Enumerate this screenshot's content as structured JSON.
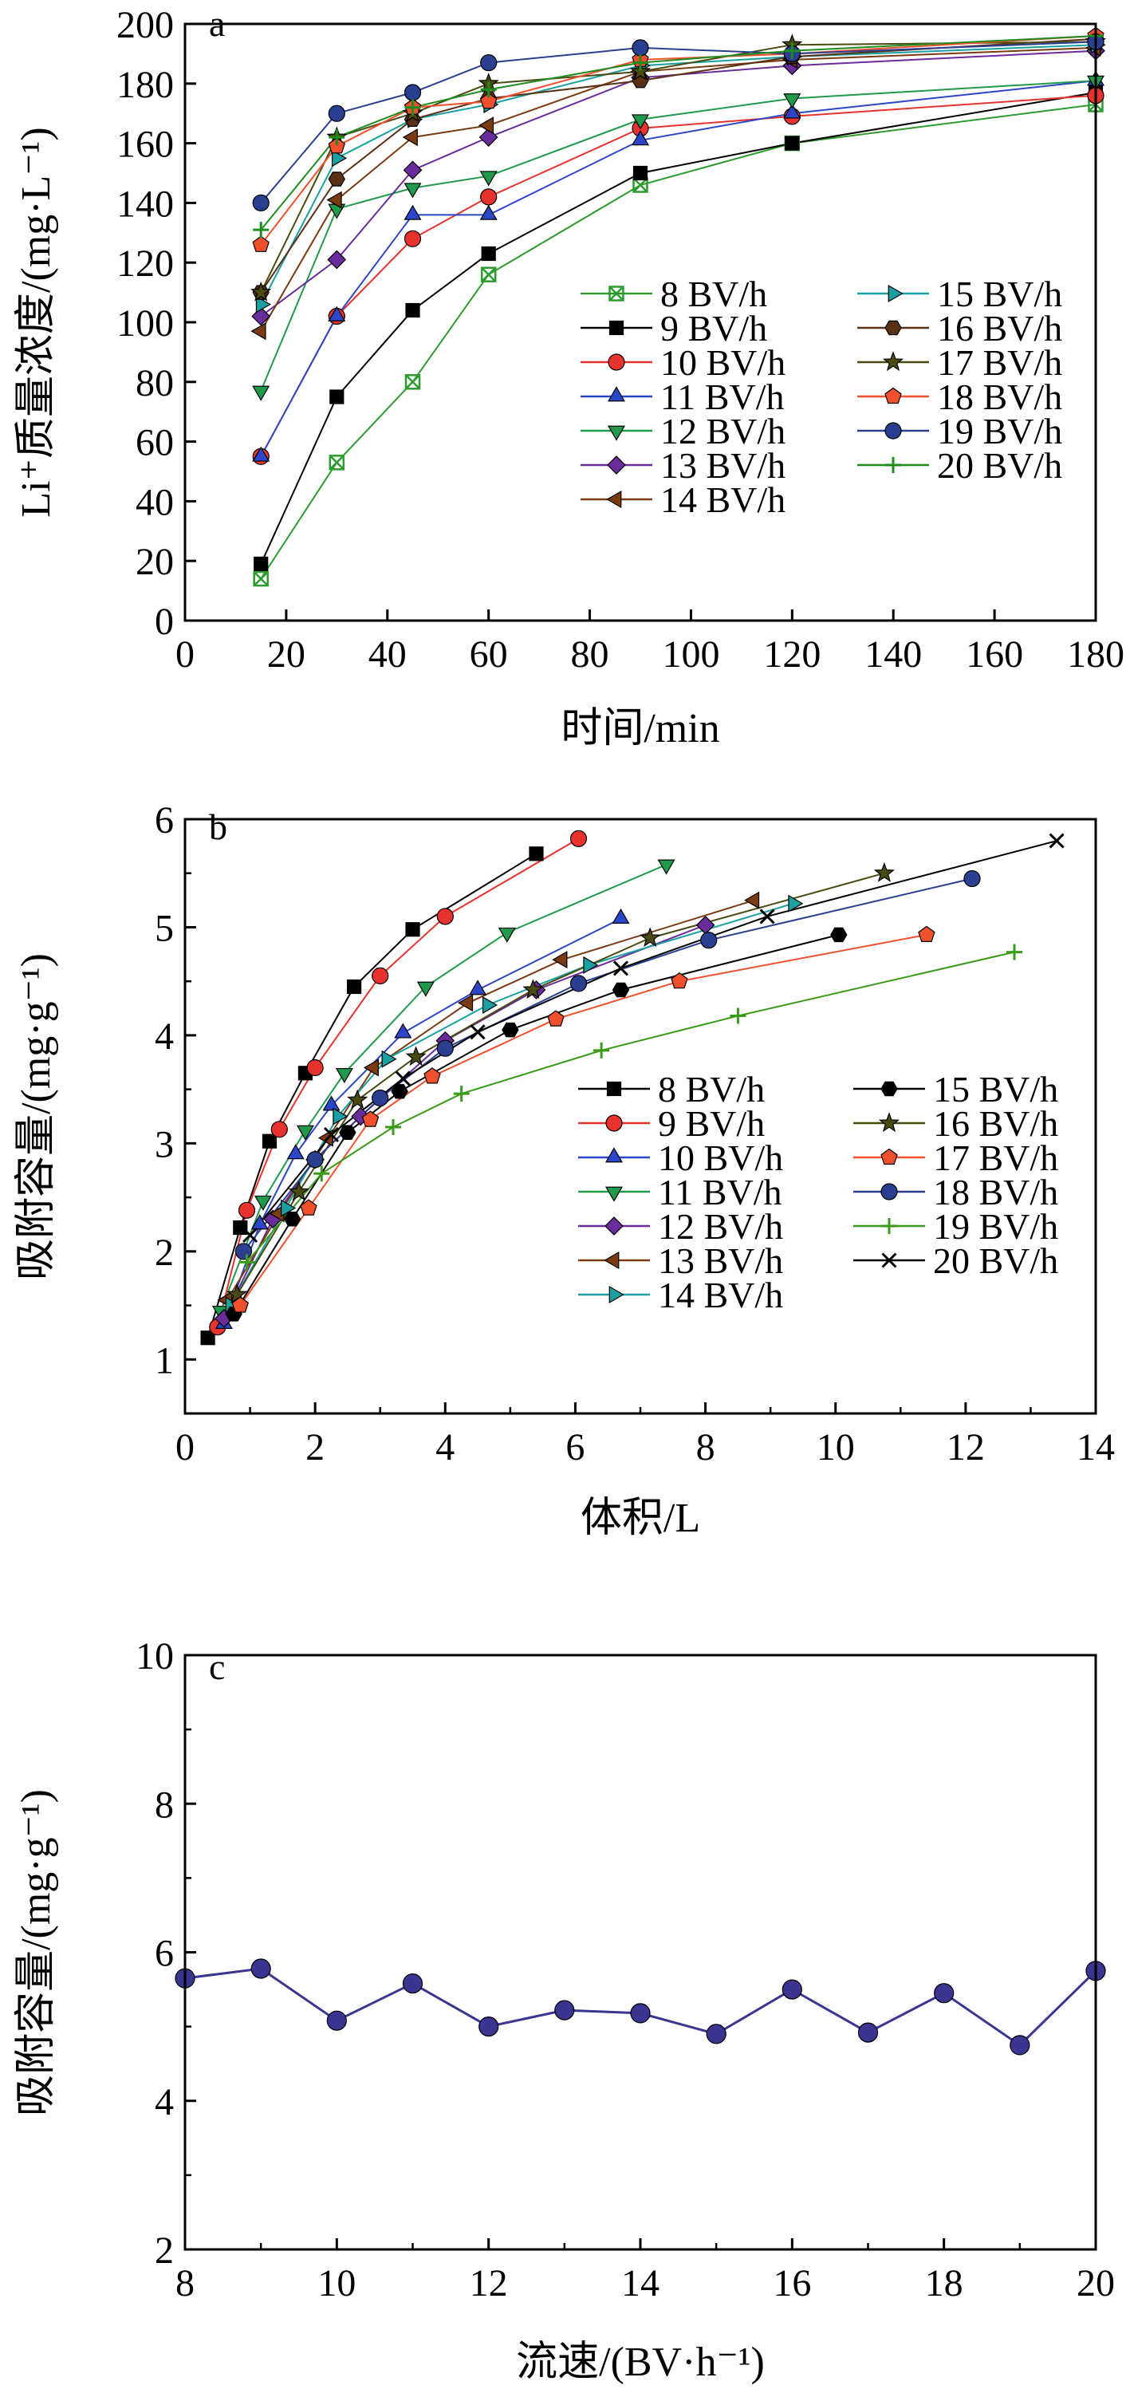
{
  "chart_data": [
    {
      "type": "line",
      "panel_label": "a",
      "xlabel": "时间/min",
      "ylabel": "Li⁺质量浓度/(mg·L⁻¹)",
      "xlim": [
        0,
        180
      ],
      "ylim": [
        0,
        200
      ],
      "xticks": [
        0,
        20,
        40,
        60,
        80,
        100,
        120,
        140,
        160,
        180
      ],
      "yticks": [
        0,
        20,
        40,
        60,
        80,
        100,
        120,
        140,
        160,
        180,
        200
      ],
      "grid": false,
      "legend": "right, two columns",
      "x": [
        15,
        30,
        45,
        60,
        90,
        120,
        180
      ],
      "series": [
        {
          "name": "8 BV/h",
          "color": "#2e9b2e",
          "marker": "xsquare",
          "values": [
            14,
            53,
            80,
            116,
            146,
            160,
            173
          ]
        },
        {
          "name": "9 BV/h",
          "color": "#000000",
          "marker": "square",
          "values": [
            19,
            75,
            104,
            123,
            150,
            160,
            177
          ]
        },
        {
          "name": "10 BV/h",
          "color": "#e8322d",
          "marker": "circle",
          "values": [
            55,
            102,
            128,
            142,
            165,
            169,
            176
          ]
        },
        {
          "name": "11 BV/h",
          "color": "#2b46c8",
          "marker": "triangle",
          "values": [
            55,
            102,
            136,
            136,
            161,
            170,
            181
          ]
        },
        {
          "name": "12 BV/h",
          "color": "#1f9a4a",
          "marker": "tridown",
          "values": [
            77,
            138,
            145,
            149,
            168,
            175,
            181
          ]
        },
        {
          "name": "13 BV/h",
          "color": "#6a2c9a",
          "marker": "diamond",
          "values": [
            102,
            121,
            151,
            162,
            182,
            186,
            191
          ]
        },
        {
          "name": "14 BV/h",
          "color": "#7a3a12",
          "marker": "trileft",
          "values": [
            97,
            141,
            162,
            166,
            184,
            188,
            192
          ]
        },
        {
          "name": "15 BV/h",
          "color": "#1aa0a0",
          "marker": "triright",
          "values": [
            106,
            155,
            168,
            173,
            186,
            189,
            193
          ]
        },
        {
          "name": "16 BV/h",
          "color": "#5a3015",
          "marker": "hexagon",
          "values": [
            110,
            148,
            168,
            175,
            181,
            189,
            195
          ]
        },
        {
          "name": "17 BV/h",
          "color": "#4a4a10",
          "marker": "star",
          "values": [
            110,
            162,
            170,
            180,
            184,
            193,
            194
          ]
        },
        {
          "name": "18 BV/h",
          "color": "#f0502d",
          "marker": "pentagon",
          "values": [
            126,
            159,
            172,
            174,
            188,
            190,
            196
          ]
        },
        {
          "name": "19 BV/h",
          "color": "#2a3f8f",
          "marker": "circle",
          "values": [
            140,
            170,
            177,
            187,
            192,
            190,
            194
          ]
        },
        {
          "name": "20 BV/h",
          "color": "#1e8c1e",
          "marker": "plus",
          "values": [
            131,
            162,
            172,
            178,
            187,
            191,
            196
          ]
        }
      ]
    },
    {
      "type": "line",
      "panel_label": "b",
      "xlabel": "体积/L",
      "ylabel": "吸附容量/(mg·g⁻¹)",
      "xlim": [
        0,
        14
      ],
      "ylim": [
        0.5,
        6
      ],
      "xticks": [
        0,
        2,
        4,
        6,
        8,
        10,
        12,
        14
      ],
      "yticks": [
        1,
        2,
        3,
        4,
        5,
        6
      ],
      "grid": false,
      "legend": "right, two columns",
      "series": [
        {
          "name": "8 BV/h",
          "color": "#000000",
          "marker": "square",
          "x": [
            0.35,
            0.85,
            1.3,
            1.85,
            2.6,
            3.5,
            5.4
          ],
          "values": [
            1.2,
            2.22,
            3.02,
            3.65,
            4.45,
            4.98,
            5.68
          ]
        },
        {
          "name": "9 BV/h",
          "color": "#e8322d",
          "marker": "circle",
          "x": [
            0.5,
            0.95,
            1.45,
            2.0,
            3.0,
            4.0,
            6.05
          ],
          "values": [
            1.3,
            2.38,
            3.13,
            3.7,
            4.55,
            5.1,
            5.82
          ]
        },
        {
          "name": "10 BV/h",
          "color": "#2b46c8",
          "marker": "triangle",
          "x": [
            0.6,
            1.15,
            1.7,
            2.25,
            3.35,
            4.5,
            6.7
          ],
          "values": [
            1.33,
            2.25,
            2.9,
            3.35,
            4.02,
            4.42,
            5.08
          ]
        },
        {
          "name": "11 BV/h",
          "color": "#1f9a4a",
          "marker": "tridown",
          "x": [
            0.55,
            1.2,
            1.85,
            2.45,
            3.7,
            4.95,
            7.4
          ],
          "values": [
            1.45,
            2.47,
            3.12,
            3.65,
            4.45,
            4.95,
            5.58
          ]
        },
        {
          "name": "12 BV/h",
          "color": "#6a2c9a",
          "marker": "diamond",
          "x": [
            0.6,
            1.35,
            2.0,
            2.7,
            4.0,
            5.4,
            8.0
          ],
          "values": [
            1.38,
            2.3,
            2.85,
            3.25,
            3.95,
            4.42,
            5.02
          ]
        },
        {
          "name": "13 BV/h",
          "color": "#7a3a12",
          "marker": "trileft",
          "x": [
            0.65,
            1.45,
            2.2,
            2.9,
            4.35,
            5.8,
            8.75
          ],
          "values": [
            1.55,
            2.35,
            3.05,
            3.7,
            4.3,
            4.7,
            5.25
          ]
        },
        {
          "name": "14 BV/h",
          "color": "#1aa0a0",
          "marker": "triright",
          "x": [
            0.7,
            1.55,
            2.35,
            3.1,
            4.65,
            6.2,
            9.35
          ],
          "values": [
            1.5,
            2.4,
            3.25,
            3.78,
            4.28,
            4.65,
            5.22
          ]
        },
        {
          "name": "15 BV/h",
          "color": "#000000",
          "marker": "hexagon",
          "x": [
            0.75,
            1.65,
            2.5,
            3.3,
            5.0,
            6.7,
            10.05
          ],
          "values": [
            1.42,
            2.3,
            3.1,
            3.48,
            4.05,
            4.42,
            4.93
          ]
        },
        {
          "name": "16 BV/h",
          "color": "#4a4a10",
          "marker": "star",
          "x": [
            0.8,
            1.75,
            2.65,
            3.55,
            5.35,
            7.15,
            10.75
          ],
          "values": [
            1.6,
            2.55,
            3.4,
            3.8,
            4.42,
            4.9,
            5.5
          ]
        },
        {
          "name": "17 BV/h",
          "color": "#f0502d",
          "marker": "pentagon",
          "x": [
            0.85,
            1.9,
            2.85,
            3.8,
            5.7,
            7.6,
            11.4
          ],
          "values": [
            1.5,
            2.4,
            3.22,
            3.62,
            4.15,
            4.5,
            4.93
          ]
        },
        {
          "name": "18 BV/h",
          "color": "#2a3f8f",
          "marker": "circle",
          "x": [
            0.9,
            2.0,
            3.0,
            4.0,
            6.05,
            8.05,
            12.1
          ],
          "values": [
            2.0,
            2.85,
            3.42,
            3.88,
            4.48,
            4.88,
            5.45
          ]
        },
        {
          "name": "19 BV/h",
          "color": "#3a9a1a",
          "marker": "plus",
          "x": [
            0.95,
            2.1,
            3.2,
            4.25,
            6.4,
            8.5,
            12.75
          ],
          "values": [
            1.9,
            2.72,
            3.15,
            3.46,
            3.86,
            4.18,
            4.77
          ]
        },
        {
          "name": "20 BV/h",
          "color": "#000000",
          "marker": "cross",
          "x": [
            1.0,
            2.25,
            3.35,
            4.5,
            6.7,
            8.95,
            13.4
          ],
          "values": [
            2.15,
            3.08,
            3.6,
            4.03,
            4.62,
            5.1,
            5.8
          ]
        }
      ]
    },
    {
      "type": "line",
      "panel_label": "c",
      "xlabel": "流速/(BV·h⁻¹)",
      "ylabel": "吸附容量/(mg·g⁻¹)",
      "xlim": [
        8,
        20
      ],
      "ylim": [
        2,
        10
      ],
      "xticks": [
        8,
        10,
        12,
        14,
        16,
        18,
        20
      ],
      "yticks": [
        2,
        4,
        6,
        8,
        10
      ],
      "grid": false,
      "legend": "none",
      "series": [
        {
          "color": "#3a3590",
          "marker": "circle",
          "x": [
            8,
            9,
            10,
            11,
            12,
            13,
            14,
            15,
            16,
            17,
            18,
            19,
            20
          ],
          "values": [
            5.65,
            5.78,
            5.08,
            5.58,
            5.0,
            5.22,
            5.18,
            4.9,
            5.5,
            4.92,
            5.45,
            4.75,
            5.75
          ]
        }
      ]
    }
  ]
}
